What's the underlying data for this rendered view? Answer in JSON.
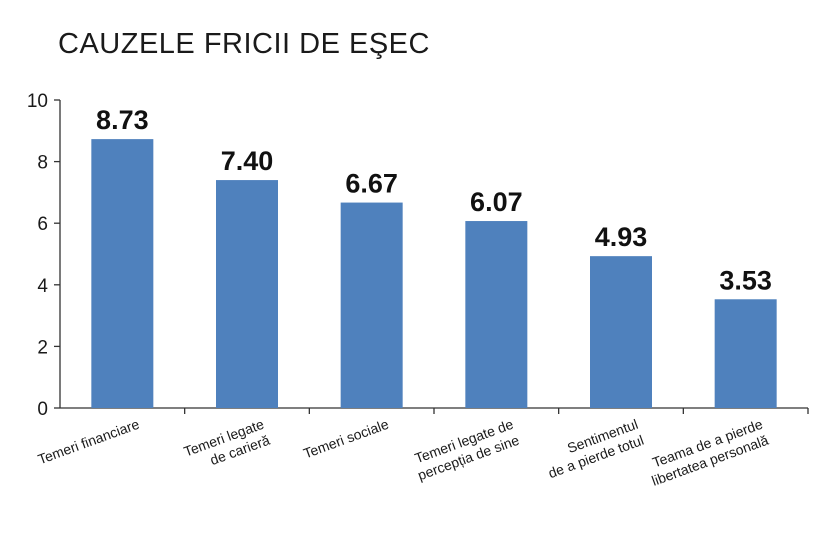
{
  "chart_data": {
    "type": "bar",
    "title": "CAUZELE FRICII DE EŞEC",
    "categories": [
      "Temeri financiare",
      "Temeri legate de carieră",
      "Temeri sociale",
      "Temeri legate de percepția de sine",
      "Sentimentul de a pierde totul",
      "Teama de a pierde libertatea personală"
    ],
    "category_lines": [
      [
        "Temeri financiare"
      ],
      [
        "Temeri legate",
        "de carieră"
      ],
      [
        "Temeri sociale"
      ],
      [
        "Temeri legate de",
        "percepția de sine"
      ],
      [
        "Sentimentul",
        "de a pierde totul"
      ],
      [
        "Teama de a pierde",
        "libertatea personală"
      ]
    ],
    "values": [
      8.73,
      7.4,
      6.67,
      6.07,
      4.93,
      3.53
    ],
    "value_labels": [
      "8.73",
      "7.40",
      "6.67",
      "6.07",
      "4.93",
      "3.53"
    ],
    "xlabel": "",
    "ylabel": "",
    "ylim": [
      0,
      10
    ],
    "yticks": [
      0,
      2,
      4,
      6,
      8,
      10
    ],
    "grid": false,
    "legend": "none",
    "bar_color": "#4f81bd"
  }
}
